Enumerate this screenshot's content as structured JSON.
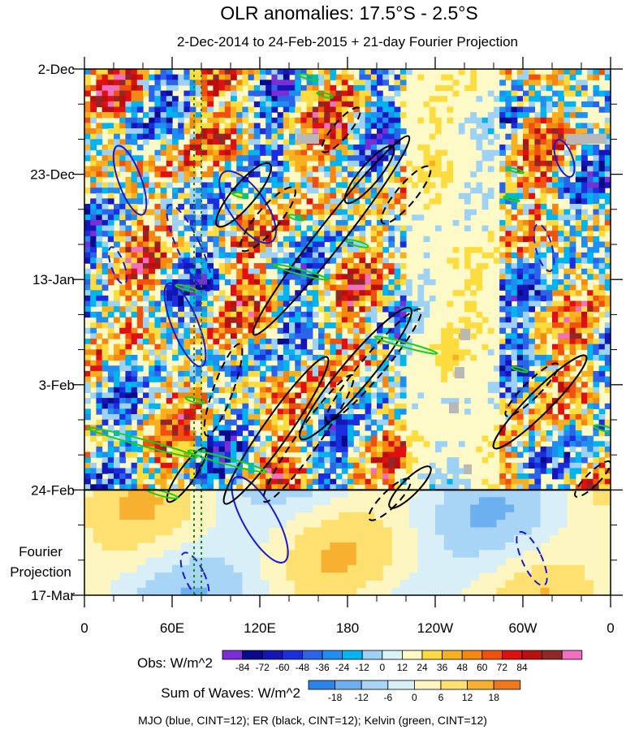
{
  "chart_data": {
    "type": "heatmap",
    "title": "OLR anomalies: 17.5°S - 2.5°S",
    "subtitle": "2-Dec-2014 to 24-Feb-2015 + 21-day Fourier Projection",
    "y_ticks": [
      "2-Dec",
      "23-Dec",
      "13-Jan",
      "3-Feb",
      "24-Feb",
      "17-Mar"
    ],
    "y_extra_label": [
      "Fourier",
      "Projection"
    ],
    "x_ticks": [
      "0",
      "60E",
      "120E",
      "180",
      "120W",
      "60W",
      "0"
    ],
    "x_range_deg": [
      0,
      360
    ],
    "observation_end": "24-Feb",
    "obs_colorbar": {
      "label": "Obs: W/m^2",
      "ticks": [
        -84,
        -72,
        -60,
        -48,
        -36,
        -24,
        -12,
        0,
        12,
        24,
        36,
        48,
        60,
        72,
        84
      ],
      "colors": [
        "#7a2fd6",
        "#0a0a8c",
        "#1515b8",
        "#1a2ee0",
        "#2b64e8",
        "#1f8ef0",
        "#00b4f0",
        "#9ed2f5",
        "#d8f4f8",
        "#fdfac8",
        "#fddc40",
        "#f8b020",
        "#f48810",
        "#f05010",
        "#e01010",
        "#b81010",
        "#902828",
        "#f070c0"
      ]
    },
    "waves_colorbar": {
      "label": "Sum of Waves: W/m^2",
      "ticks": [
        -18,
        -12,
        -6,
        0,
        6,
        12,
        18
      ],
      "colors": [
        "#2b84e8",
        "#6cb0f0",
        "#a8d4f5",
        "#d8eff8",
        "#fdf6c0",
        "#fde070",
        "#f8b030",
        "#f07818"
      ]
    },
    "contours_note": "MJO (blue, CINT=12); ER (black, CINT=12); Kelvin (green, CINT=12)",
    "contour_colors": {
      "MJO": "#1a1ad0",
      "ER": "#000000",
      "Kelvin": "#18d018",
      "reference": "#1a8a1a"
    }
  }
}
